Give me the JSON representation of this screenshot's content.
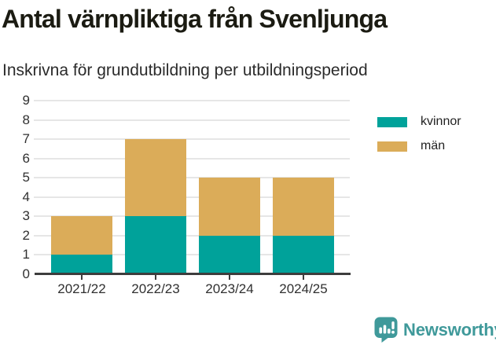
{
  "title": "Antal värnpliktiga från Svenljunga",
  "subtitle": "Inskrivna för grundutbildning per utbildningsperiod",
  "chart_data": {
    "type": "bar",
    "stacked": true,
    "categories": [
      "2021/22",
      "2022/23",
      "2023/24",
      "2024/25"
    ],
    "series": [
      {
        "name": "kvinnor",
        "color": "#00a29a",
        "values": [
          1,
          3,
          2,
          2
        ]
      },
      {
        "name": "män",
        "color": "#dbac59",
        "values": [
          2,
          4,
          3,
          3
        ]
      }
    ],
    "totals": [
      3,
      7,
      5,
      5
    ],
    "title": "Antal värnpliktiga från Svenljunga",
    "xlabel": "",
    "ylabel": "",
    "ylim": [
      0,
      9
    ],
    "yticks": [
      0,
      1,
      2,
      3,
      4,
      5,
      6,
      7,
      8,
      9
    ],
    "grid": true,
    "legend_position": "right"
  },
  "branding": {
    "logo_text": "Newsworthy"
  },
  "colors": {
    "title_text": "#1b1b12",
    "subtitle_text": "#2b2b2b",
    "tick_text": "#303030",
    "legend_text": "#222222",
    "grid": "#e6e6e6",
    "axis": "#3d3d3d",
    "brand": "#3f999a"
  }
}
